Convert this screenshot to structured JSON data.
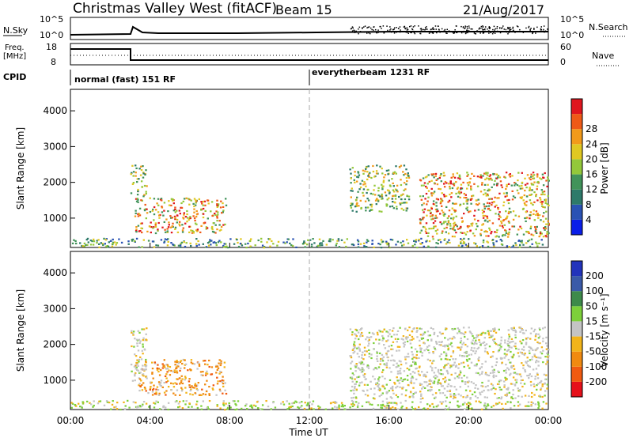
{
  "header": {
    "station": "Christmas Valley West (fitACF)",
    "beam": "Beam 15",
    "date": "21/Aug/2017"
  },
  "strip": {
    "nsky_label": "N.Sky",
    "nsearch_label": "N.Search",
    "nsky_ticks": [
      "10^5",
      "10^0"
    ],
    "nsearch_ticks": [
      "10^5",
      "10^0"
    ],
    "freq_label_1": "Freq.",
    "freq_label_2": "[MHz]",
    "freq_ticks": [
      "18",
      "8"
    ],
    "nave_label": "Nave",
    "nave_ticks": [
      "60",
      "0"
    ],
    "cpid_label": "CPID",
    "cpid_modes": [
      "normal (fast) 151 RF",
      "everytherbeam 1231 RF"
    ]
  },
  "chart_data": [
    {
      "type": "heatmap",
      "title": "",
      "xlabel": "Time UT",
      "ylabel": "Slant Range [km]",
      "x_ticks": [
        "00:00",
        "04:00",
        "08:00",
        "12:00",
        "16:00",
        "20:00",
        "00:00"
      ],
      "y_ticks": [
        "1000",
        "2000",
        "3000",
        "4000"
      ],
      "colorbar": {
        "label": "Power [dB]",
        "ticks": [
          "4",
          "8",
          "12",
          "16",
          "20",
          "24",
          "28"
        ],
        "colors": [
          "#0a1ee8",
          "#2a52b4",
          "#2e7a6a",
          "#41935a",
          "#93c83a",
          "#e0c822",
          "#f29a1a",
          "#ef5a17",
          "#e0161e"
        ]
      },
      "regions": [
        {
          "t0": 3.2,
          "t1": 7.8,
          "r0": 600,
          "r1": 1600,
          "level": "high"
        },
        {
          "t0": 3.0,
          "t1": 3.8,
          "r0": 1600,
          "r1": 2500,
          "level": "mid"
        },
        {
          "t0": 14.0,
          "t1": 17.0,
          "r0": 1200,
          "r1": 2500,
          "level": "mid"
        },
        {
          "t0": 17.5,
          "t1": 24.0,
          "r0": 500,
          "r1": 2300,
          "level": "high"
        },
        {
          "t0": 0.0,
          "t1": 24.0,
          "r0": 200,
          "r1": 450,
          "level": "low"
        }
      ]
    },
    {
      "type": "heatmap",
      "title": "",
      "xlabel": "Time UT",
      "ylabel": "Slant Range [km]",
      "x_ticks": [
        "00:00",
        "04:00",
        "08:00",
        "12:00",
        "16:00",
        "20:00",
        "00:00"
      ],
      "y_ticks": [
        "1000",
        "2000",
        "3000",
        "4000"
      ],
      "colorbar": {
        "label": "Velocity [m s⁻¹]",
        "ticks": [
          "200",
          "100",
          "50",
          "15",
          "-15",
          "-50",
          "-100",
          "-200"
        ],
        "colors": [
          "#2233bb",
          "#3a5aa8",
          "#3d8a4a",
          "#7dd03a",
          "#c4c4c4",
          "#f2b41a",
          "#f08a10",
          "#f05a10",
          "#e6101a"
        ]
      },
      "regions": [
        {
          "t0": 3.2,
          "t1": 7.8,
          "r0": 600,
          "r1": 1600,
          "level": "neg"
        },
        {
          "t0": 3.0,
          "t1": 3.8,
          "r0": 1000,
          "r1": 2500,
          "level": "gray"
        },
        {
          "t0": 14.0,
          "t1": 24.0,
          "r0": 500,
          "r1": 2500,
          "level": "gray"
        },
        {
          "t0": 0.0,
          "t1": 24.0,
          "r0": 200,
          "r1": 450,
          "level": "lowvel"
        }
      ]
    }
  ]
}
